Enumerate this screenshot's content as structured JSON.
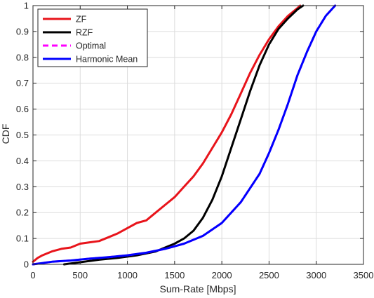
{
  "chart_data": {
    "type": "line",
    "xlabel": "Sum-Rate [Mbps]",
    "ylabel": "CDF",
    "xlim": [
      0,
      3500
    ],
    "ylim": [
      0,
      1
    ],
    "x_ticks": [
      "0",
      "500",
      "1000",
      "1500",
      "2000",
      "2500",
      "3000",
      "3500"
    ],
    "y_ticks": [
      "0",
      "0.1",
      "0.2",
      "0.3",
      "0.4",
      "0.5",
      "0.6",
      "0.7",
      "0.8",
      "0.9",
      "1"
    ],
    "grid": true,
    "legend_position": "top-left",
    "series": [
      {
        "name": "ZF",
        "color": "#e8141b",
        "style": "solid",
        "points": [
          [
            0,
            0.01
          ],
          [
            50,
            0.025
          ],
          [
            100,
            0.035
          ],
          [
            200,
            0.05
          ],
          [
            300,
            0.06
          ],
          [
            400,
            0.065
          ],
          [
            500,
            0.08
          ],
          [
            600,
            0.085
          ],
          [
            700,
            0.09
          ],
          [
            800,
            0.105
          ],
          [
            900,
            0.12
          ],
          [
            1000,
            0.14
          ],
          [
            1100,
            0.16
          ],
          [
            1200,
            0.17
          ],
          [
            1300,
            0.2
          ],
          [
            1400,
            0.23
          ],
          [
            1500,
            0.26
          ],
          [
            1600,
            0.3
          ],
          [
            1700,
            0.34
          ],
          [
            1800,
            0.39
          ],
          [
            1900,
            0.45
          ],
          [
            2000,
            0.51
          ],
          [
            2100,
            0.58
          ],
          [
            2200,
            0.66
          ],
          [
            2300,
            0.74
          ],
          [
            2400,
            0.81
          ],
          [
            2500,
            0.87
          ],
          [
            2600,
            0.92
          ],
          [
            2700,
            0.96
          ],
          [
            2800,
            0.99
          ],
          [
            2830,
            1.0
          ]
        ]
      },
      {
        "name": "RZF",
        "color": "#000000",
        "style": "solid",
        "points": [
          [
            330,
            0.0
          ],
          [
            500,
            0.008
          ],
          [
            700,
            0.018
          ],
          [
            900,
            0.025
          ],
          [
            1100,
            0.035
          ],
          [
            1300,
            0.05
          ],
          [
            1400,
            0.065
          ],
          [
            1500,
            0.08
          ],
          [
            1600,
            0.1
          ],
          [
            1700,
            0.13
          ],
          [
            1800,
            0.18
          ],
          [
            1900,
            0.25
          ],
          [
            2000,
            0.34
          ],
          [
            2100,
            0.45
          ],
          [
            2200,
            0.56
          ],
          [
            2300,
            0.67
          ],
          [
            2400,
            0.77
          ],
          [
            2500,
            0.85
          ],
          [
            2600,
            0.91
          ],
          [
            2700,
            0.95
          ],
          [
            2800,
            0.985
          ],
          [
            2860,
            1.0
          ]
        ]
      },
      {
        "name": "Optimal",
        "color": "#ff00ff",
        "style": "dashed",
        "points": [
          [
            0,
            0.0
          ],
          [
            200,
            0.01
          ],
          [
            400,
            0.015
          ],
          [
            600,
            0.022
          ],
          [
            800,
            0.028
          ],
          [
            1000,
            0.035
          ],
          [
            1200,
            0.045
          ],
          [
            1400,
            0.06
          ],
          [
            1600,
            0.08
          ],
          [
            1800,
            0.11
          ],
          [
            2000,
            0.16
          ],
          [
            2200,
            0.24
          ],
          [
            2400,
            0.35
          ],
          [
            2500,
            0.43
          ],
          [
            2600,
            0.52
          ],
          [
            2700,
            0.62
          ],
          [
            2800,
            0.73
          ],
          [
            2900,
            0.82
          ],
          [
            3000,
            0.9
          ],
          [
            3100,
            0.96
          ],
          [
            3200,
            1.0
          ]
        ]
      },
      {
        "name": "Harmonic Mean",
        "color": "#0000ff",
        "style": "solid",
        "points": [
          [
            0,
            0.0
          ],
          [
            200,
            0.01
          ],
          [
            400,
            0.015
          ],
          [
            600,
            0.022
          ],
          [
            800,
            0.028
          ],
          [
            1000,
            0.035
          ],
          [
            1200,
            0.045
          ],
          [
            1400,
            0.06
          ],
          [
            1600,
            0.08
          ],
          [
            1800,
            0.11
          ],
          [
            2000,
            0.16
          ],
          [
            2200,
            0.24
          ],
          [
            2400,
            0.35
          ],
          [
            2500,
            0.43
          ],
          [
            2600,
            0.52
          ],
          [
            2700,
            0.62
          ],
          [
            2800,
            0.73
          ],
          [
            2900,
            0.82
          ],
          [
            3000,
            0.9
          ],
          [
            3100,
            0.96
          ],
          [
            3200,
            1.0
          ]
        ]
      }
    ]
  }
}
